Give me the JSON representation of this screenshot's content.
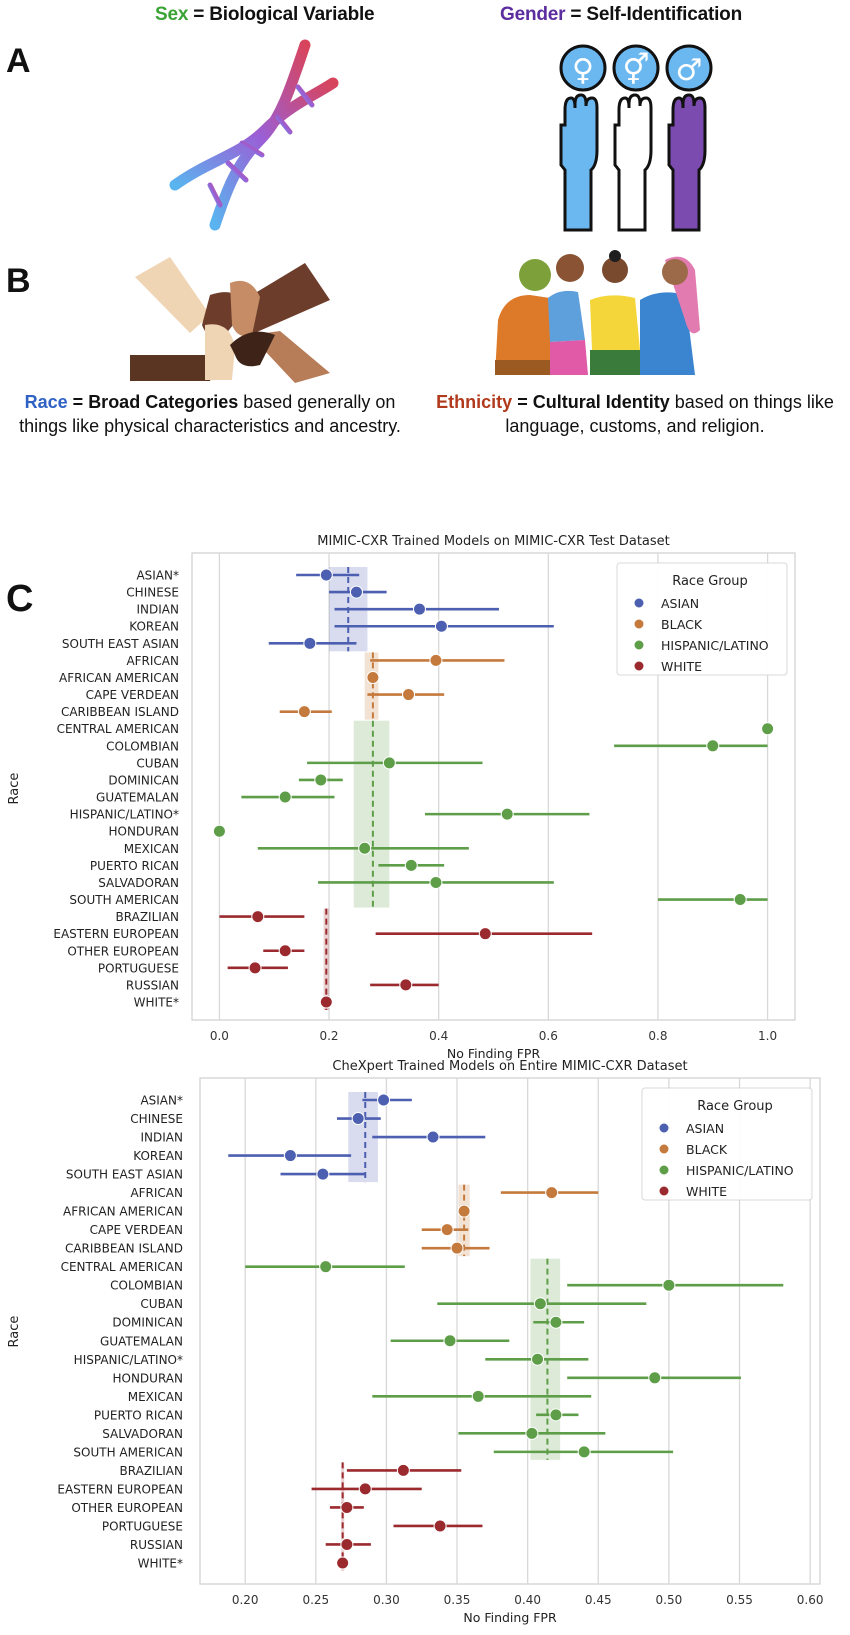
{
  "panel_a": {
    "letter": "A",
    "sex": {
      "term": "Sex",
      "eq": " = Biological Variable",
      "term_color": "#3aa335"
    },
    "gender": {
      "term": "Gender",
      "eq": " = Self-Identification",
      "term_color": "#5b2d9e"
    },
    "gender_symbols": [
      "♀",
      "⚥",
      "♂"
    ],
    "hand_colors": [
      "#6bb8f0",
      "#ffffff",
      "#7b4bb0"
    ]
  },
  "panel_b": {
    "letter": "B",
    "race": {
      "term": "Race",
      "eq": " = ",
      "bold": "Broad Categories",
      "rest": " based generally on things like physical characteristics and ancestry.",
      "term_color": "#2f62c4"
    },
    "ethnicity": {
      "term": "Ethnicity",
      "eq": " = ",
      "bold": "Cultural Identity",
      "rest": " based on things like language, customs, and religion.",
      "term_color": "#b23a1c"
    }
  },
  "panel_c": {
    "letter": "C"
  },
  "chart_data": [
    {
      "type": "scatter",
      "subtype": "point-with-error-bars",
      "title": "MIMIC-CXR Trained Models on MIMIC-CXR Test Dataset",
      "xlabel": "No Finding FPR",
      "ylabel": "Race",
      "xlim": [
        -0.05,
        1.05
      ],
      "xticks": [
        0.0,
        0.2,
        0.4,
        0.6,
        0.8,
        1.0
      ],
      "xtick_labels": [
        "0.0",
        "0.2",
        "0.4",
        "0.6",
        "0.8",
        "1.0"
      ],
      "grid": "vertical",
      "legend": {
        "title": "Race Group",
        "placement": "top-right",
        "entries": [
          "ASIAN",
          "BLACK",
          "HISPANIC/LATINO",
          "WHITE"
        ]
      },
      "group_colors": {
        "ASIAN": "#4c5fb0",
        "BLACK": "#c57a3d",
        "HISPANIC/LATINO": "#5e9e48",
        "WHITE": "#9b2a2e"
      },
      "group_means": [
        {
          "group": "ASIAN",
          "mean": 0.235,
          "band": [
            0.2,
            0.27
          ],
          "rows": [
            0,
            4
          ]
        },
        {
          "group": "BLACK",
          "mean": 0.28,
          "band": [
            0.265,
            0.29
          ],
          "rows": [
            5,
            8
          ]
        },
        {
          "group": "HISPANIC/LATINO",
          "mean": 0.28,
          "band": [
            0.245,
            0.31
          ],
          "rows": [
            9,
            19
          ]
        },
        {
          "group": "WHITE",
          "mean": 0.195,
          "band": [
            0.19,
            0.2
          ],
          "rows": [
            20,
            25
          ]
        }
      ],
      "rows": [
        {
          "label": "ASIAN*",
          "group": "ASIAN",
          "value": 0.195,
          "ci": [
            0.14,
            0.255
          ]
        },
        {
          "label": "CHINESE",
          "group": "ASIAN",
          "value": 0.25,
          "ci": [
            0.2,
            0.305
          ]
        },
        {
          "label": "INDIAN",
          "group": "ASIAN",
          "value": 0.365,
          "ci": [
            0.21,
            0.51
          ]
        },
        {
          "label": "KOREAN",
          "group": "ASIAN",
          "value": 0.405,
          "ci": [
            0.21,
            0.61
          ]
        },
        {
          "label": "SOUTH EAST ASIAN",
          "group": "ASIAN",
          "value": 0.165,
          "ci": [
            0.09,
            0.25
          ]
        },
        {
          "label": "AFRICAN",
          "group": "BLACK",
          "value": 0.395,
          "ci": [
            0.275,
            0.52
          ]
        },
        {
          "label": "AFRICAN AMERICAN",
          "group": "BLACK",
          "value": 0.28,
          "ci": [
            0.275,
            0.285
          ]
        },
        {
          "label": "CAPE VERDEAN",
          "group": "BLACK",
          "value": 0.345,
          "ci": [
            0.27,
            0.41
          ]
        },
        {
          "label": "CARIBBEAN ISLAND",
          "group": "BLACK",
          "value": 0.155,
          "ci": [
            0.11,
            0.205
          ]
        },
        {
          "label": "CENTRAL AMERICAN",
          "group": "HISPANIC/LATINO",
          "value": 1.0,
          "ci": [
            1.0,
            1.0
          ]
        },
        {
          "label": "COLOMBIAN",
          "group": "HISPANIC/LATINO",
          "value": 0.9,
          "ci": [
            0.72,
            1.0
          ]
        },
        {
          "label": "CUBAN",
          "group": "HISPANIC/LATINO",
          "value": 0.31,
          "ci": [
            0.16,
            0.48
          ]
        },
        {
          "label": "DOMINICAN",
          "group": "HISPANIC/LATINO",
          "value": 0.185,
          "ci": [
            0.145,
            0.225
          ]
        },
        {
          "label": "GUATEMALAN",
          "group": "HISPANIC/LATINO",
          "value": 0.12,
          "ci": [
            0.04,
            0.21
          ]
        },
        {
          "label": "HISPANIC/LATINO*",
          "group": "HISPANIC/LATINO",
          "value": 0.525,
          "ci": [
            0.375,
            0.675
          ]
        },
        {
          "label": "HONDURAN",
          "group": "HISPANIC/LATINO",
          "value": 0.0,
          "ci": [
            0.0,
            0.0
          ]
        },
        {
          "label": "MEXICAN",
          "group": "HISPANIC/LATINO",
          "value": 0.265,
          "ci": [
            0.07,
            0.455
          ]
        },
        {
          "label": "PUERTO RICAN",
          "group": "HISPANIC/LATINO",
          "value": 0.35,
          "ci": [
            0.29,
            0.41
          ]
        },
        {
          "label": "SALVADORAN",
          "group": "HISPANIC/LATINO",
          "value": 0.395,
          "ci": [
            0.18,
            0.61
          ]
        },
        {
          "label": "SOUTH AMERICAN",
          "group": "HISPANIC/LATINO",
          "value": 0.95,
          "ci": [
            0.8,
            1.0
          ]
        },
        {
          "label": "BRAZILIAN",
          "group": "WHITE",
          "value": 0.07,
          "ci": [
            0.0,
            0.155
          ]
        },
        {
          "label": "EASTERN EUROPEAN",
          "group": "WHITE",
          "value": 0.485,
          "ci": [
            0.285,
            0.68
          ]
        },
        {
          "label": "OTHER EUROPEAN",
          "group": "WHITE",
          "value": 0.12,
          "ci": [
            0.08,
            0.155
          ]
        },
        {
          "label": "PORTUGUESE",
          "group": "WHITE",
          "value": 0.065,
          "ci": [
            0.015,
            0.125
          ]
        },
        {
          "label": "RUSSIAN",
          "group": "WHITE",
          "value": 0.34,
          "ci": [
            0.275,
            0.4
          ]
        },
        {
          "label": "WHITE*",
          "group": "WHITE",
          "value": 0.195,
          "ci": [
            0.195,
            0.195
          ]
        }
      ]
    },
    {
      "type": "scatter",
      "subtype": "point-with-error-bars",
      "title": "CheXpert Trained Models on Entire MIMIC-CXR Dataset",
      "xlabel": "No Finding FPR",
      "ylabel": "Race",
      "xlim": [
        0.168,
        0.607
      ],
      "xticks": [
        0.2,
        0.25,
        0.3,
        0.35,
        0.4,
        0.45,
        0.5,
        0.55,
        0.6
      ],
      "xtick_labels": [
        "0.20",
        "0.25",
        "0.30",
        "0.35",
        "0.40",
        "0.45",
        "0.50",
        "0.55",
        "0.60"
      ],
      "grid": "vertical",
      "legend": {
        "title": "Race Group",
        "placement": "top-right",
        "entries": [
          "ASIAN",
          "BLACK",
          "HISPANIC/LATINO",
          "WHITE"
        ]
      },
      "group_colors": {
        "ASIAN": "#4c5fb0",
        "BLACK": "#c57a3d",
        "HISPANIC/LATINO": "#5e9e48",
        "WHITE": "#9b2a2e"
      },
      "group_means": [
        {
          "group": "ASIAN",
          "mean": 0.285,
          "band": [
            0.273,
            0.294
          ],
          "rows": [
            0,
            4
          ]
        },
        {
          "group": "BLACK",
          "mean": 0.355,
          "band": [
            0.351,
            0.359
          ],
          "rows": [
            5,
            8
          ]
        },
        {
          "group": "HISPANIC/LATINO",
          "mean": 0.414,
          "band": [
            0.402,
            0.423
          ],
          "rows": [
            9,
            19
          ]
        },
        {
          "group": "WHITE",
          "mean": 0.269,
          "band": [
            0.268,
            0.27
          ],
          "rows": [
            20,
            25
          ]
        }
      ],
      "rows": [
        {
          "label": "ASIAN*",
          "group": "ASIAN",
          "value": 0.298,
          "ci": [
            0.283,
            0.318
          ]
        },
        {
          "label": "CHINESE",
          "group": "ASIAN",
          "value": 0.28,
          "ci": [
            0.265,
            0.296
          ]
        },
        {
          "label": "INDIAN",
          "group": "ASIAN",
          "value": 0.333,
          "ci": [
            0.29,
            0.37
          ]
        },
        {
          "label": "KOREAN",
          "group": "ASIAN",
          "value": 0.232,
          "ci": [
            0.188,
            0.275
          ]
        },
        {
          "label": "SOUTH EAST ASIAN",
          "group": "ASIAN",
          "value": 0.255,
          "ci": [
            0.225,
            0.285
          ]
        },
        {
          "label": "AFRICAN",
          "group": "BLACK",
          "value": 0.417,
          "ci": [
            0.381,
            0.45
          ]
        },
        {
          "label": "AFRICAN AMERICAN",
          "group": "BLACK",
          "value": 0.355,
          "ci": [
            0.354,
            0.356
          ]
        },
        {
          "label": "CAPE VERDEAN",
          "group": "BLACK",
          "value": 0.343,
          "ci": [
            0.325,
            0.358
          ]
        },
        {
          "label": "CARIBBEAN ISLAND",
          "group": "BLACK",
          "value": 0.35,
          "ci": [
            0.325,
            0.373
          ]
        },
        {
          "label": "CENTRAL AMERICAN",
          "group": "HISPANIC/LATINO",
          "value": 0.257,
          "ci": [
            0.2,
            0.313
          ]
        },
        {
          "label": "COLOMBIAN",
          "group": "HISPANIC/LATINO",
          "value": 0.5,
          "ci": [
            0.428,
            0.581
          ]
        },
        {
          "label": "CUBAN",
          "group": "HISPANIC/LATINO",
          "value": 0.409,
          "ci": [
            0.336,
            0.484
          ]
        },
        {
          "label": "DOMINICAN",
          "group": "HISPANIC/LATINO",
          "value": 0.42,
          "ci": [
            0.404,
            0.44
          ]
        },
        {
          "label": "GUATEMALAN",
          "group": "HISPANIC/LATINO",
          "value": 0.345,
          "ci": [
            0.303,
            0.387
          ]
        },
        {
          "label": "HISPANIC/LATINO*",
          "group": "HISPANIC/LATINO",
          "value": 0.407,
          "ci": [
            0.37,
            0.443
          ]
        },
        {
          "label": "HONDURAN",
          "group": "HISPANIC/LATINO",
          "value": 0.49,
          "ci": [
            0.428,
            0.551
          ]
        },
        {
          "label": "MEXICAN",
          "group": "HISPANIC/LATINO",
          "value": 0.365,
          "ci": [
            0.29,
            0.445
          ]
        },
        {
          "label": "PUERTO RICAN",
          "group": "HISPANIC/LATINO",
          "value": 0.42,
          "ci": [
            0.406,
            0.436
          ]
        },
        {
          "label": "SALVADORAN",
          "group": "HISPANIC/LATINO",
          "value": 0.403,
          "ci": [
            0.351,
            0.455
          ]
        },
        {
          "label": "SOUTH AMERICAN",
          "group": "HISPANIC/LATINO",
          "value": 0.44,
          "ci": [
            0.376,
            0.503
          ]
        },
        {
          "label": "BRAZILIAN",
          "group": "WHITE",
          "value": 0.312,
          "ci": [
            0.272,
            0.353
          ]
        },
        {
          "label": "EASTERN EUROPEAN",
          "group": "WHITE",
          "value": 0.285,
          "ci": [
            0.247,
            0.325
          ]
        },
        {
          "label": "OTHER EUROPEAN",
          "group": "WHITE",
          "value": 0.272,
          "ci": [
            0.26,
            0.284
          ]
        },
        {
          "label": "PORTUGUESE",
          "group": "WHITE",
          "value": 0.338,
          "ci": [
            0.305,
            0.368
          ]
        },
        {
          "label": "RUSSIAN",
          "group": "WHITE",
          "value": 0.272,
          "ci": [
            0.257,
            0.289
          ]
        },
        {
          "label": "WHITE*",
          "group": "WHITE",
          "value": 0.269,
          "ci": [
            0.269,
            0.269
          ]
        }
      ]
    }
  ]
}
